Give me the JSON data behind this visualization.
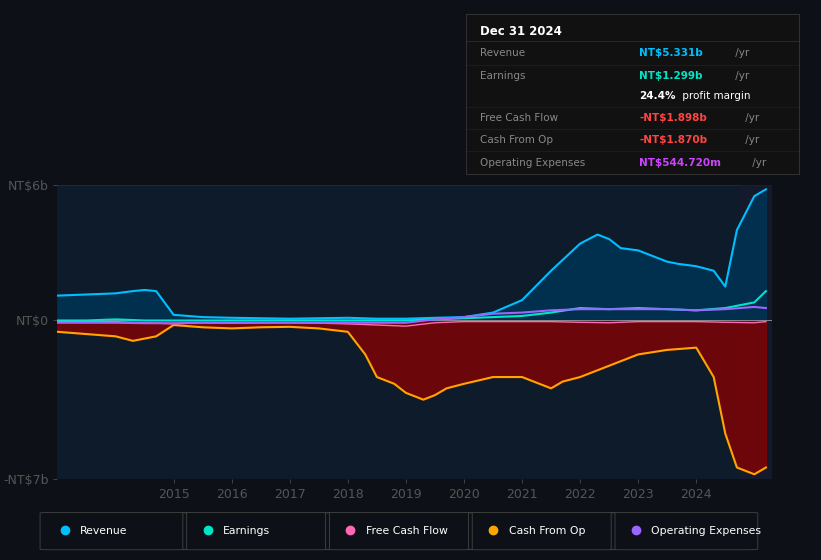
{
  "bg_color": "#0d1117",
  "plot_bg_color": "#0d1b2a",
  "ylim": [
    -7000000000.0,
    6000000000.0
  ],
  "yticks": [
    6000000000.0,
    0,
    -7000000000.0
  ],
  "ytick_labels": [
    "NT$6b",
    "NT$0",
    "-NT$7b"
  ],
  "xlim": [
    2013.0,
    2025.3
  ],
  "xticks": [
    2015,
    2016,
    2017,
    2018,
    2019,
    2020,
    2021,
    2022,
    2023,
    2024
  ],
  "legend": [
    {
      "label": "Revenue",
      "color": "#00bfff"
    },
    {
      "label": "Earnings",
      "color": "#00e5c8"
    },
    {
      "label": "Free Cash Flow",
      "color": "#ff69b4"
    },
    {
      "label": "Cash From Op",
      "color": "#ffa500"
    },
    {
      "label": "Operating Expenses",
      "color": "#9966ff"
    }
  ],
  "revenue": {
    "color": "#00bfff",
    "fill_color": "#003355",
    "x": [
      2013.0,
      2013.5,
      2014.0,
      2014.3,
      2014.5,
      2014.7,
      2015.0,
      2015.5,
      2016.0,
      2016.5,
      2017.0,
      2017.5,
      2018.0,
      2018.5,
      2019.0,
      2019.5,
      2020.0,
      2020.5,
      2021.0,
      2021.5,
      2022.0,
      2022.3,
      2022.5,
      2022.7,
      2023.0,
      2023.3,
      2023.5,
      2023.7,
      2024.0,
      2024.3,
      2024.5,
      2024.7,
      2025.0,
      2025.2
    ],
    "y": [
      1100000000,
      1150000000,
      1200000000,
      1300000000,
      1350000000,
      1300000000,
      250000000,
      150000000,
      120000000,
      100000000,
      80000000,
      100000000,
      120000000,
      80000000,
      80000000,
      120000000,
      150000000,
      350000000,
      900000000,
      2200000000,
      3400000000,
      3800000000,
      3600000000,
      3200000000,
      3100000000,
      2800000000,
      2600000000,
      2500000000,
      2400000000,
      2200000000,
      1500000000,
      4000000000,
      5500000000,
      5800000000
    ]
  },
  "earnings": {
    "color": "#00e5c8",
    "x": [
      2013.0,
      2013.5,
      2014.0,
      2014.5,
      2015.0,
      2015.5,
      2016.0,
      2016.5,
      2017.0,
      2017.5,
      2018.0,
      2018.5,
      2019.0,
      2019.5,
      2020.0,
      2020.5,
      2021.0,
      2021.5,
      2022.0,
      2022.5,
      2023.0,
      2023.5,
      2024.0,
      2024.5,
      2025.0,
      2025.2
    ],
    "y": [
      0,
      0,
      50000000,
      0,
      0,
      0,
      0,
      0,
      0,
      0,
      0,
      0,
      0,
      50000000,
      100000000,
      150000000,
      200000000,
      350000000,
      550000000,
      500000000,
      550000000,
      500000000,
      450000000,
      550000000,
      800000000,
      1300000000
    ]
  },
  "free_cash_flow": {
    "color": "#ff69b4",
    "x": [
      2013.0,
      2013.5,
      2014.0,
      2014.5,
      2015.0,
      2015.5,
      2016.0,
      2016.5,
      2017.0,
      2017.5,
      2018.0,
      2018.5,
      2019.0,
      2019.5,
      2020.0,
      2020.5,
      2021.0,
      2021.5,
      2022.0,
      2022.5,
      2023.0,
      2023.5,
      2024.0,
      2024.5,
      2025.0,
      2025.2
    ],
    "y": [
      -50000000,
      -50000000,
      -50000000,
      -100000000,
      -150000000,
      -100000000,
      -120000000,
      -100000000,
      -100000000,
      -120000000,
      -150000000,
      -200000000,
      -250000000,
      -100000000,
      -50000000,
      -50000000,
      -50000000,
      -50000000,
      -80000000,
      -100000000,
      -50000000,
      -50000000,
      -50000000,
      -80000000,
      -100000000,
      -50000000
    ]
  },
  "cash_from_op": {
    "color": "#ffa500",
    "fill_color": "#8b0000",
    "x": [
      2013.0,
      2013.5,
      2014.0,
      2014.3,
      2014.5,
      2014.7,
      2015.0,
      2015.5,
      2016.0,
      2016.5,
      2017.0,
      2017.5,
      2018.0,
      2018.3,
      2018.5,
      2018.8,
      2019.0,
      2019.3,
      2019.5,
      2019.7,
      2020.0,
      2020.5,
      2021.0,
      2021.3,
      2021.5,
      2021.7,
      2022.0,
      2022.3,
      2022.5,
      2022.7,
      2023.0,
      2023.5,
      2024.0,
      2024.3,
      2024.5,
      2024.7,
      2025.0,
      2025.2
    ],
    "y": [
      -500000000,
      -600000000,
      -700000000,
      -900000000,
      -800000000,
      -700000000,
      -200000000,
      -300000000,
      -350000000,
      -300000000,
      -280000000,
      -350000000,
      -500000000,
      -1500000000,
      -2500000000,
      -2800000000,
      -3200000000,
      -3500000000,
      -3300000000,
      -3000000000,
      -2800000000,
      -2500000000,
      -2500000000,
      -2800000000,
      -3000000000,
      -2700000000,
      -2500000000,
      -2200000000,
      -2000000000,
      -1800000000,
      -1500000000,
      -1300000000,
      -1200000000,
      -2500000000,
      -5000000000,
      -6500000000,
      -6800000000,
      -6500000000
    ]
  },
  "op_expenses": {
    "color": "#9966ff",
    "x": [
      2013.0,
      2013.5,
      2014.0,
      2014.5,
      2015.0,
      2015.5,
      2016.0,
      2016.5,
      2017.0,
      2017.5,
      2018.0,
      2018.5,
      2019.0,
      2019.5,
      2020.0,
      2020.5,
      2021.0,
      2021.5,
      2022.0,
      2022.5,
      2023.0,
      2023.5,
      2024.0,
      2024.5,
      2025.0,
      2025.2
    ],
    "y": [
      -100000000,
      -100000000,
      -100000000,
      -120000000,
      -120000000,
      -100000000,
      -100000000,
      -100000000,
      -100000000,
      -100000000,
      -100000000,
      -100000000,
      -100000000,
      50000000,
      150000000,
      300000000,
      350000000,
      450000000,
      500000000,
      500000000,
      500000000,
      500000000,
      450000000,
      500000000,
      600000000,
      550000000
    ]
  },
  "box": {
    "date": "Dec 31 2024",
    "revenue_label": "Revenue",
    "revenue_value": "NT$5.331b",
    "revenue_unit": " /yr",
    "revenue_color": "#00bfff",
    "earnings_label": "Earnings",
    "earnings_value": "NT$1.299b",
    "earnings_unit": " /yr",
    "earnings_color": "#00e5c8",
    "margin_pct": "24.4%",
    "margin_text": " profit margin",
    "fcf_label": "Free Cash Flow",
    "fcf_value": "-NT$1.898b",
    "fcf_unit": " /yr",
    "fcf_color": "#ff4444",
    "cashop_label": "Cash From Op",
    "cashop_value": "-NT$1.870b",
    "cashop_unit": " /yr",
    "cashop_color": "#ff4444",
    "opex_label": "Operating Expenses",
    "opex_value": "NT$544.720m",
    "opex_unit": " /yr",
    "opex_color": "#cc44ff"
  }
}
